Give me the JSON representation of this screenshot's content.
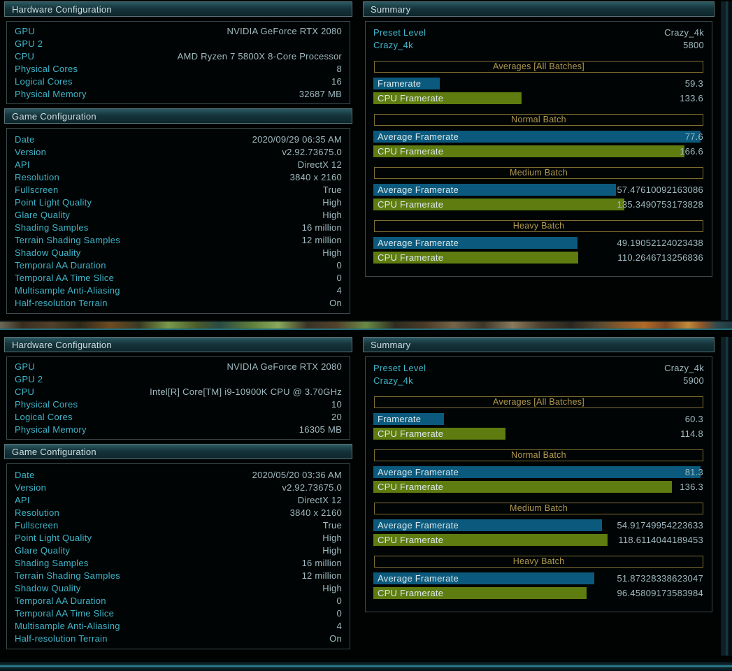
{
  "ui": {
    "hardware_title": "Hardware Configuration",
    "game_title": "Game Configuration",
    "summary_title": "Summary"
  },
  "colors": {
    "bar_blue": "#0b5a7d",
    "bar_green": "#5e7c0f",
    "label_teal": "#3fb4c9",
    "value_gray": "#9fbac1",
    "gold_text": "#b19a4f",
    "gold_border": "#7e6e33"
  },
  "results": [
    {
      "hardware": [
        {
          "label": "GPU",
          "value": "NVIDIA GeForce RTX 2080"
        },
        {
          "label": "GPU 2",
          "value": ""
        },
        {
          "label": "CPU",
          "value": "AMD Ryzen 7 5800X 8-Core Processor"
        },
        {
          "label": "Physical Cores",
          "value": "8"
        },
        {
          "label": "Logical Cores",
          "value": "16"
        },
        {
          "label": "Physical Memory",
          "value": "32687 MB"
        }
      ],
      "game": [
        {
          "label": "Date",
          "value": "2020/09/29 06:35 AM"
        },
        {
          "label": "Version",
          "value": "v2.92.73675.0"
        },
        {
          "label": "API",
          "value": "DirectX 12"
        },
        {
          "label": "Resolution",
          "value": "3840 x 2160"
        },
        {
          "label": "Fullscreen",
          "value": "True"
        },
        {
          "label": "Point Light Quality",
          "value": "High"
        },
        {
          "label": "Glare Quality",
          "value": "High"
        },
        {
          "label": "Shading Samples",
          "value": "16 million"
        },
        {
          "label": "Terrain Shading Samples",
          "value": "12 million"
        },
        {
          "label": "Shadow Quality",
          "value": "High"
        },
        {
          "label": "Temporal AA Duration",
          "value": "0"
        },
        {
          "label": "Temporal AA Time Slice",
          "value": "0"
        },
        {
          "label": "Multisample Anti-Aliasing",
          "value": "4"
        },
        {
          "label": "Half-resolution Terrain",
          "value": "On"
        }
      ],
      "summary": {
        "preset_rows": [
          {
            "label": "Preset Level",
            "value": "Crazy_4k"
          },
          {
            "label": "Crazy_4k",
            "value": "5800"
          }
        ],
        "sections": [
          {
            "header": "Averages [All Batches]",
            "rows": [
              {
                "label": "Framerate",
                "value": "59.3",
                "bar": "blue",
                "pct": 20.0
              },
              {
                "label": "CPU Framerate",
                "value": "133.6",
                "bar": "green",
                "pct": 44.9
              }
            ]
          },
          {
            "header": "Normal Batch",
            "rows": [
              {
                "label": "Average Framerate",
                "value": "77.6",
                "bar": "blue",
                "pct": 99.0
              },
              {
                "label": "CPU Framerate",
                "value": "166.6",
                "bar": "green",
                "pct": 94.0
              }
            ]
          },
          {
            "header": "Medium Batch",
            "rows": [
              {
                "label": "Average Framerate",
                "value": "57.47610092163086",
                "bar": "blue",
                "pct": 73.3
              },
              {
                "label": "CPU Framerate",
                "value": "135.3490753173828",
                "bar": "green",
                "pct": 75.8
              }
            ]
          },
          {
            "header": "Heavy Batch",
            "rows": [
              {
                "label": "Average Framerate",
                "value": "49.19052124023438",
                "bar": "blue",
                "pct": 61.8
              },
              {
                "label": "CPU Framerate",
                "value": "110.2646713256836",
                "bar": "green",
                "pct": 62.0
              }
            ]
          }
        ]
      }
    },
    {
      "hardware": [
        {
          "label": "GPU",
          "value": "NVIDIA GeForce RTX 2080"
        },
        {
          "label": "GPU 2",
          "value": ""
        },
        {
          "label": "CPU",
          "value": "Intel[R] Core[TM] i9-10900K CPU @ 3.70GHz"
        },
        {
          "label": "Physical Cores",
          "value": "10"
        },
        {
          "label": "Logical Cores",
          "value": "20"
        },
        {
          "label": "Physical Memory",
          "value": "16305 MB"
        }
      ],
      "game": [
        {
          "label": "Date",
          "value": "2020/05/20 03:36 AM"
        },
        {
          "label": "Version",
          "value": "v2.92.73675.0"
        },
        {
          "label": "API",
          "value": "DirectX 12"
        },
        {
          "label": "Resolution",
          "value": "3840 x 2160"
        },
        {
          "label": "Fullscreen",
          "value": "True"
        },
        {
          "label": "Point Light Quality",
          "value": "High"
        },
        {
          "label": "Glare Quality",
          "value": "High"
        },
        {
          "label": "Shading Samples",
          "value": "16 million"
        },
        {
          "label": "Terrain Shading Samples",
          "value": "12 million"
        },
        {
          "label": "Shadow Quality",
          "value": "High"
        },
        {
          "label": "Temporal AA Duration",
          "value": "0"
        },
        {
          "label": "Temporal AA Time Slice",
          "value": "0"
        },
        {
          "label": "Multisample Anti-Aliasing",
          "value": "4"
        },
        {
          "label": "Half-resolution Terrain",
          "value": "On"
        }
      ],
      "summary": {
        "preset_rows": [
          {
            "label": "Preset Level",
            "value": "Crazy_4k"
          },
          {
            "label": "Crazy_4k",
            "value": "5900"
          }
        ],
        "sections": [
          {
            "header": "Averages [All Batches]",
            "rows": [
              {
                "label": "Framerate",
                "value": "60.3",
                "bar": "blue",
                "pct": 21.3
              },
              {
                "label": "CPU Framerate",
                "value": "114.8",
                "bar": "green",
                "pct": 39.9
              }
            ]
          },
          {
            "header": "Normal Batch",
            "rows": [
              {
                "label": "Average Framerate",
                "value": "81.3",
                "bar": "blue",
                "pct": 99.0
              },
              {
                "label": "CPU Framerate",
                "value": "136.3",
                "bar": "green",
                "pct": 90.2
              }
            ]
          },
          {
            "header": "Medium Batch",
            "rows": [
              {
                "label": "Average Framerate",
                "value": "54.91749954223633",
                "bar": "blue",
                "pct": 69.1
              },
              {
                "label": "CPU Framerate",
                "value": "118.6114044189453",
                "bar": "green",
                "pct": 70.8
              }
            ]
          },
          {
            "header": "Heavy Batch",
            "rows": [
              {
                "label": "Average Framerate",
                "value": "51.87328338623047",
                "bar": "blue",
                "pct": 66.8
              },
              {
                "label": "CPU Framerate",
                "value": "96.45809173583984",
                "bar": "green",
                "pct": 64.5
              }
            ]
          }
        ]
      }
    }
  ]
}
